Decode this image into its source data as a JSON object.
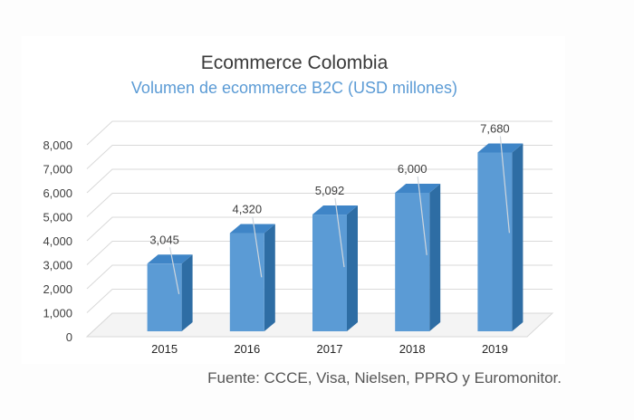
{
  "chart_data": {
    "type": "bar",
    "title": "Ecommerce Colombia",
    "subtitle": "Volumen de ecommerce B2C (USD millones)",
    "categories": [
      "2015",
      "2016",
      "2017",
      "2018",
      "2019"
    ],
    "values": [
      3045,
      4320,
      5092,
      6000,
      7680
    ],
    "data_labels": [
      "3,045",
      "4,320",
      "5,092",
      "6,000",
      "7,680"
    ],
    "yticks": [
      "0",
      "1,000",
      "2,000",
      "3,000",
      "4,000",
      "5,000",
      "6,000",
      "7,000",
      "8,000"
    ],
    "ylim": [
      0,
      8000
    ],
    "xlabel": "",
    "ylabel": "",
    "style": "3d-column",
    "colors": {
      "front": "#5b9bd5",
      "side": "#2e6da4",
      "top": "#3f85c7",
      "grid": "#d9d9d9",
      "text": "#404040"
    }
  },
  "source": "Fuente: CCCE, Visa, Nielsen, PPRO y Euromonitor."
}
